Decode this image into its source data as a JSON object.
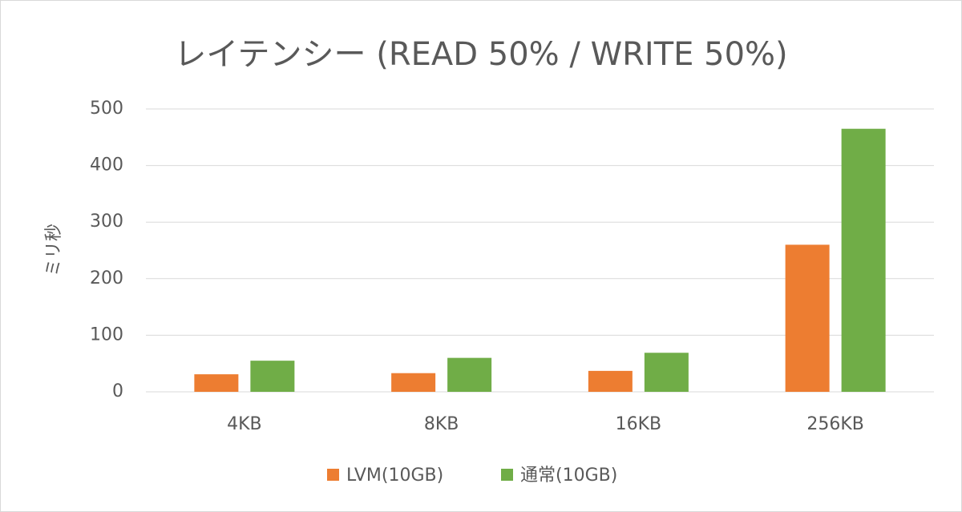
{
  "chart_data": {
    "type": "bar",
    "title": "レイテンシー (READ 50% / WRITE 50%)",
    "y_label": "ミリ秒",
    "categories": [
      "4KB",
      "8KB",
      "16KB",
      "256KB"
    ],
    "series": [
      {
        "name": "LVM(10GB)",
        "color": "#ed7d31",
        "values": [
          31,
          33,
          37,
          260
        ]
      },
      {
        "name": "通常(10GB)",
        "color": "#70ad47",
        "values": [
          55,
          60,
          69,
          465
        ]
      }
    ],
    "ylim": [
      0,
      500
    ],
    "yticks": [
      0,
      100,
      200,
      300,
      400,
      500
    ],
    "grid": true,
    "legend": "bottom"
  }
}
